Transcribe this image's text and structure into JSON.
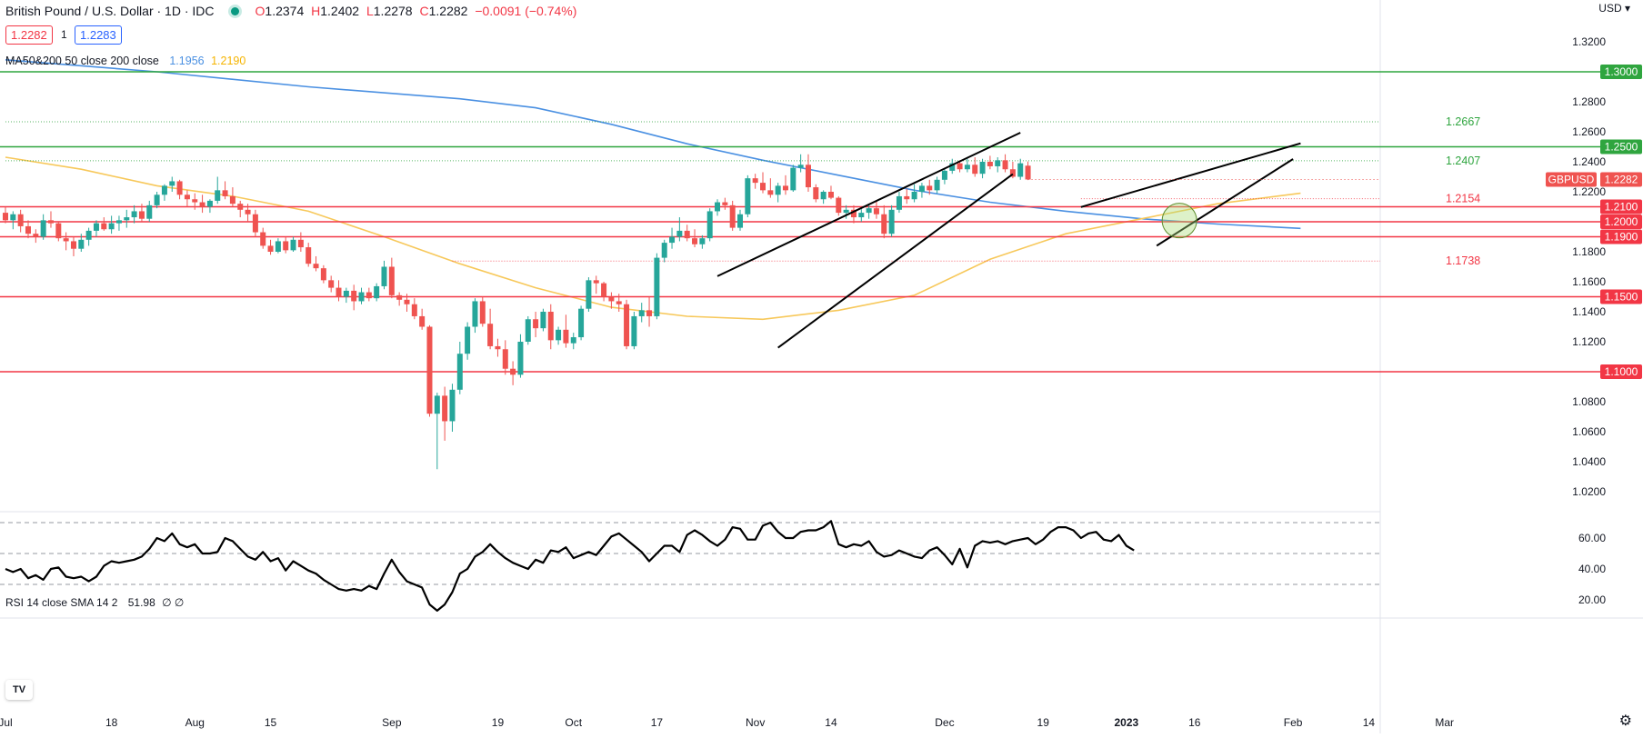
{
  "header": {
    "title": "British Pound / U.S. Dollar · 1D · IDC",
    "ohlc": {
      "o": "1.2374",
      "h": "1.2402",
      "l": "1.2278",
      "c": "1.2282",
      "chg": "−0.0091 (−0.74%)"
    },
    "bid": "1.2282",
    "spread": "1",
    "ask": "1.2283",
    "currency": "USD"
  },
  "ma_legend": {
    "label": "MA50&200 50 close 200 close",
    "ma200": "1.1956",
    "ma50": "1.2190"
  },
  "rsi_legend": {
    "label": "RSI 14 close SMA 14 2",
    "value": "51.98",
    "extra": "∅ ∅"
  },
  "colors": {
    "up": "#26a69a",
    "down": "#ef5350",
    "ma200": "#4a90e2",
    "ma50": "#f7c85a",
    "support": "#f23645",
    "resistance": "#2fa53f"
  },
  "chart_data": {
    "type": "candlestick",
    "symbol": "GBPUSD",
    "price_axis": {
      "ylim": [
        1.01,
        1.335
      ],
      "ticks": [
        "1.3200",
        "1.2800",
        "1.2600",
        "1.2400",
        "1.2200",
        "1.1800",
        "1.1600",
        "1.1400",
        "1.1200",
        "1.0800",
        "1.0600",
        "1.0400",
        "1.0200"
      ]
    },
    "time_axis": {
      "labels": [
        [
          "Jul",
          0
        ],
        [
          "18",
          14
        ],
        [
          "Aug",
          25
        ],
        [
          "15",
          35
        ],
        [
          "Sep",
          51
        ],
        [
          "19",
          65
        ],
        [
          "Oct",
          75
        ],
        [
          "17",
          86
        ],
        [
          "Nov",
          99
        ],
        [
          "14",
          109
        ],
        [
          "Dec",
          124
        ],
        [
          "19",
          137
        ],
        [
          "2023",
          148
        ],
        [
          "16",
          157
        ],
        [
          "Feb",
          170
        ],
        [
          "14",
          180
        ],
        [
          "Mar",
          190
        ]
      ]
    },
    "last_price": {
      "label": "GBPUSD",
      "value": "1.2282"
    },
    "horizontal_levels": [
      {
        "value": 1.3,
        "label": "1.3000",
        "kind": "resistance"
      },
      {
        "value": 1.25,
        "label": "1.2500",
        "kind": "resistance"
      },
      {
        "value": 1.21,
        "label": "1.2100",
        "kind": "support"
      },
      {
        "value": 1.2,
        "label": "1.2000",
        "kind": "support"
      },
      {
        "value": 1.19,
        "label": "1.1900",
        "kind": "support"
      },
      {
        "value": 1.15,
        "label": "1.1500",
        "kind": "support"
      },
      {
        "value": 1.1,
        "label": "1.1000",
        "kind": "support"
      }
    ],
    "fib_levels": [
      {
        "value": 1.2667,
        "label": "1.2667",
        "kind": "resistance",
        "from": 0
      },
      {
        "value": 1.2407,
        "label": "1.2407",
        "kind": "resistance",
        "from": 0
      },
      {
        "value": 1.2154,
        "label": "1.2154",
        "kind": "support",
        "from": 142
      },
      {
        "value": 1.1738,
        "label": "1.1738",
        "kind": "support",
        "from": 59
      }
    ],
    "trendlines": [
      {
        "name": "upper-channel-1",
        "p1": [
          94,
          1.1637
        ],
        "p2": [
          134,
          1.2594
        ]
      },
      {
        "name": "lower-channel-1",
        "p1": [
          102,
          1.116
        ],
        "p2": [
          133,
          1.2318
        ]
      },
      {
        "name": "upper-wedge-2",
        "p1": [
          142,
          1.2098
        ],
        "p2": [
          171,
          1.2523
        ]
      },
      {
        "name": "lower-wedge-2",
        "p1": [
          152,
          1.184
        ],
        "p2": [
          170,
          1.2418
        ]
      }
    ],
    "highlight_circle": {
      "x": 155,
      "y": 1.2008
    },
    "candles": [
      [
        1.206,
        1.21,
        1.199,
        1.201
      ],
      [
        1.201,
        1.207,
        1.195,
        1.205
      ],
      [
        1.205,
        1.208,
        1.193,
        1.197
      ],
      [
        1.197,
        1.201,
        1.189,
        1.192
      ],
      [
        1.192,
        1.195,
        1.186,
        1.19
      ],
      [
        1.19,
        1.205,
        1.188,
        1.201
      ],
      [
        1.201,
        1.207,
        1.196,
        1.199
      ],
      [
        1.199,
        1.2,
        1.187,
        1.189
      ],
      [
        1.189,
        1.193,
        1.181,
        1.187
      ],
      [
        1.187,
        1.19,
        1.177,
        1.182
      ],
      [
        1.182,
        1.192,
        1.18,
        1.188
      ],
      [
        1.188,
        1.196,
        1.184,
        1.194
      ],
      [
        1.194,
        1.201,
        1.19,
        1.199
      ],
      [
        1.199,
        1.203,
        1.194,
        1.195
      ],
      [
        1.195,
        1.204,
        1.192,
        1.199
      ],
      [
        1.199,
        1.204,
        1.194,
        1.201
      ],
      [
        1.201,
        1.208,
        1.196,
        1.203
      ],
      [
        1.203,
        1.211,
        1.199,
        1.207
      ],
      [
        1.207,
        1.212,
        1.2,
        1.202
      ],
      [
        1.202,
        1.214,
        1.2,
        1.211
      ],
      [
        1.211,
        1.22,
        1.209,
        1.218
      ],
      [
        1.218,
        1.225,
        1.214,
        1.224
      ],
      [
        1.224,
        1.23,
        1.22,
        1.227
      ],
      [
        1.227,
        1.228,
        1.215,
        1.218
      ],
      [
        1.218,
        1.221,
        1.21,
        1.215
      ],
      [
        1.215,
        1.219,
        1.208,
        1.213
      ],
      [
        1.213,
        1.218,
        1.206,
        1.21
      ],
      [
        1.21,
        1.215,
        1.206,
        1.214
      ],
      [
        1.214,
        1.23,
        1.212,
        1.221
      ],
      [
        1.221,
        1.227,
        1.215,
        1.217
      ],
      [
        1.217,
        1.223,
        1.21,
        1.212
      ],
      [
        1.212,
        1.214,
        1.203,
        1.208
      ],
      [
        1.208,
        1.212,
        1.2,
        1.205
      ],
      [
        1.205,
        1.208,
        1.19,
        1.193
      ],
      [
        1.193,
        1.196,
        1.182,
        1.184
      ],
      [
        1.184,
        1.188,
        1.178,
        1.18
      ],
      [
        1.18,
        1.189,
        1.179,
        1.187
      ],
      [
        1.187,
        1.19,
        1.179,
        1.181
      ],
      [
        1.181,
        1.19,
        1.18,
        1.188
      ],
      [
        1.188,
        1.193,
        1.18,
        1.183
      ],
      [
        1.183,
        1.186,
        1.17,
        1.172
      ],
      [
        1.172,
        1.177,
        1.167,
        1.169
      ],
      [
        1.169,
        1.171,
        1.159,
        1.161
      ],
      [
        1.161,
        1.164,
        1.153,
        1.156
      ],
      [
        1.156,
        1.161,
        1.147,
        1.15
      ],
      [
        1.15,
        1.156,
        1.146,
        1.154
      ],
      [
        1.154,
        1.158,
        1.141,
        1.147
      ],
      [
        1.147,
        1.156,
        1.145,
        1.153
      ],
      [
        1.153,
        1.156,
        1.147,
        1.149
      ],
      [
        1.149,
        1.159,
        1.147,
        1.157
      ],
      [
        1.157,
        1.174,
        1.155,
        1.17
      ],
      [
        1.17,
        1.176,
        1.149,
        1.151
      ],
      [
        1.151,
        1.153,
        1.144,
        1.148
      ],
      [
        1.148,
        1.152,
        1.14,
        1.145
      ],
      [
        1.145,
        1.149,
        1.135,
        1.137
      ],
      [
        1.137,
        1.142,
        1.128,
        1.13
      ],
      [
        1.13,
        1.131,
        1.07,
        1.072
      ],
      [
        1.072,
        1.086,
        1.035,
        1.084
      ],
      [
        1.084,
        1.09,
        1.054,
        1.067
      ],
      [
        1.067,
        1.092,
        1.06,
        1.088
      ],
      [
        1.088,
        1.12,
        1.085,
        1.112
      ],
      [
        1.112,
        1.133,
        1.108,
        1.13
      ],
      [
        1.13,
        1.149,
        1.126,
        1.147
      ],
      [
        1.147,
        1.15,
        1.13,
        1.132
      ],
      [
        1.132,
        1.142,
        1.115,
        1.117
      ],
      [
        1.117,
        1.122,
        1.11,
        1.115
      ],
      [
        1.115,
        1.121,
        1.098,
        1.102
      ],
      [
        1.102,
        1.107,
        1.091,
        1.098
      ],
      [
        1.098,
        1.125,
        1.096,
        1.12
      ],
      [
        1.12,
        1.137,
        1.118,
        1.135
      ],
      [
        1.135,
        1.14,
        1.123,
        1.129
      ],
      [
        1.129,
        1.142,
        1.127,
        1.14
      ],
      [
        1.14,
        1.145,
        1.115,
        1.121
      ],
      [
        1.121,
        1.13,
        1.118,
        1.128
      ],
      [
        1.128,
        1.138,
        1.116,
        1.119
      ],
      [
        1.119,
        1.126,
        1.115,
        1.123
      ],
      [
        1.123,
        1.144,
        1.121,
        1.142
      ],
      [
        1.142,
        1.163,
        1.14,
        1.161
      ],
      [
        1.161,
        1.164,
        1.152,
        1.159
      ],
      [
        1.159,
        1.16,
        1.147,
        1.15
      ],
      [
        1.15,
        1.153,
        1.142,
        1.147
      ],
      [
        1.147,
        1.152,
        1.14,
        1.145
      ],
      [
        1.145,
        1.148,
        1.115,
        1.117
      ],
      [
        1.117,
        1.14,
        1.115,
        1.137
      ],
      [
        1.137,
        1.146,
        1.133,
        1.141
      ],
      [
        1.141,
        1.15,
        1.13,
        1.137
      ],
      [
        1.137,
        1.179,
        1.135,
        1.176
      ],
      [
        1.176,
        1.188,
        1.173,
        1.186
      ],
      [
        1.186,
        1.196,
        1.182,
        1.19
      ],
      [
        1.19,
        1.203,
        1.187,
        1.194
      ],
      [
        1.194,
        1.198,
        1.187,
        1.189
      ],
      [
        1.189,
        1.195,
        1.183,
        1.185
      ],
      [
        1.185,
        1.191,
        1.182,
        1.189
      ],
      [
        1.189,
        1.209,
        1.187,
        1.207
      ],
      [
        1.207,
        1.215,
        1.204,
        1.213
      ],
      [
        1.213,
        1.216,
        1.208,
        1.211
      ],
      [
        1.211,
        1.214,
        1.194,
        1.196
      ],
      [
        1.196,
        1.208,
        1.194,
        1.205
      ],
      [
        1.205,
        1.231,
        1.203,
        1.229
      ],
      [
        1.229,
        1.232,
        1.222,
        1.226
      ],
      [
        1.226,
        1.233,
        1.219,
        1.221
      ],
      [
        1.221,
        1.229,
        1.216,
        1.218
      ],
      [
        1.218,
        1.226,
        1.213,
        1.224
      ],
      [
        1.224,
        1.231,
        1.218,
        1.221
      ],
      [
        1.221,
        1.238,
        1.22,
        1.236
      ],
      [
        1.236,
        1.245,
        1.233,
        1.238
      ],
      [
        1.238,
        1.245,
        1.22,
        1.223
      ],
      [
        1.223,
        1.225,
        1.213,
        1.215
      ],
      [
        1.215,
        1.221,
        1.212,
        1.22
      ],
      [
        1.22,
        1.224,
        1.215,
        1.216
      ],
      [
        1.216,
        1.217,
        1.204,
        1.206
      ],
      [
        1.206,
        1.211,
        1.202,
        1.208
      ],
      [
        1.208,
        1.211,
        1.199,
        1.203
      ],
      [
        1.203,
        1.209,
        1.2,
        1.206
      ],
      [
        1.206,
        1.212,
        1.202,
        1.209
      ],
      [
        1.209,
        1.214,
        1.202,
        1.205
      ],
      [
        1.205,
        1.211,
        1.189,
        1.192
      ],
      [
        1.192,
        1.211,
        1.19,
        1.208
      ],
      [
        1.208,
        1.22,
        1.206,
        1.217
      ],
      [
        1.217,
        1.222,
        1.212,
        1.215
      ],
      [
        1.215,
        1.225,
        1.213,
        1.22
      ],
      [
        1.22,
        1.226,
        1.216,
        1.224
      ],
      [
        1.224,
        1.228,
        1.218,
        1.221
      ],
      [
        1.221,
        1.23,
        1.219,
        1.228
      ],
      [
        1.228,
        1.236,
        1.225,
        1.234
      ],
      [
        1.234,
        1.242,
        1.232,
        1.239
      ],
      [
        1.239,
        1.241,
        1.233,
        1.235
      ],
      [
        1.235,
        1.242,
        1.233,
        1.238
      ],
      [
        1.238,
        1.243,
        1.23,
        1.232
      ],
      [
        1.232,
        1.242,
        1.229,
        1.24
      ],
      [
        1.24,
        1.244,
        1.235,
        1.237
      ],
      [
        1.237,
        1.243,
        1.233,
        1.241
      ],
      [
        1.241,
        1.245,
        1.233,
        1.235
      ],
      [
        1.235,
        1.24,
        1.229,
        1.23
      ],
      [
        1.23,
        1.242,
        1.228,
        1.239
      ],
      [
        1.2374,
        1.2402,
        1.2278,
        1.2282
      ]
    ],
    "ma200": [
      [
        0,
        1.308
      ],
      [
        20,
        1.3
      ],
      [
        40,
        1.29
      ],
      [
        60,
        1.282
      ],
      [
        70,
        1.276
      ],
      [
        80,
        1.265
      ],
      [
        90,
        1.252
      ],
      [
        100,
        1.241
      ],
      [
        110,
        1.231
      ],
      [
        120,
        1.221
      ],
      [
        130,
        1.213
      ],
      [
        140,
        1.207
      ],
      [
        150,
        1.202
      ],
      [
        160,
        1.1985
      ],
      [
        171,
        1.1956
      ]
    ],
    "ma50": [
      [
        0,
        1.243
      ],
      [
        10,
        1.235
      ],
      [
        20,
        1.224
      ],
      [
        30,
        1.217
      ],
      [
        40,
        1.207
      ],
      [
        50,
        1.19
      ],
      [
        60,
        1.172
      ],
      [
        70,
        1.156
      ],
      [
        80,
        1.143
      ],
      [
        90,
        1.137
      ],
      [
        100,
        1.135
      ],
      [
        110,
        1.141
      ],
      [
        120,
        1.151
      ],
      [
        130,
        1.175
      ],
      [
        140,
        1.192
      ],
      [
        150,
        1.202
      ],
      [
        160,
        1.212
      ],
      [
        171,
        1.219
      ]
    ],
    "rsi": {
      "ticks": [
        "60.00",
        "40.00",
        "20.00"
      ],
      "bands": [
        70,
        50,
        30
      ],
      "values": [
        40,
        38,
        40,
        34,
        36,
        33,
        40,
        41,
        35,
        34,
        35,
        32,
        35,
        42,
        45,
        44,
        45,
        46,
        48,
        53,
        60,
        58,
        63,
        56,
        54,
        56,
        50,
        50,
        51,
        60,
        58,
        53,
        48,
        46,
        51,
        45,
        47,
        39,
        45,
        42,
        39,
        37,
        33,
        30,
        27,
        26,
        27,
        26,
        29,
        27,
        37,
        46,
        38,
        32,
        30,
        28,
        17,
        13,
        17,
        25,
        37,
        40,
        48,
        51,
        56,
        51,
        47,
        44,
        42,
        40,
        46,
        44,
        52,
        51,
        54,
        47,
        49,
        51,
        49,
        55,
        61,
        63,
        59,
        55,
        51,
        45,
        50,
        55,
        55,
        51,
        62,
        65,
        62,
        58,
        55,
        59,
        67,
        66,
        59,
        59,
        68,
        70,
        64,
        60,
        60,
        64,
        65,
        65,
        67,
        71,
        56,
        54,
        56,
        55,
        58,
        51,
        48,
        49,
        52,
        50,
        48,
        47,
        52,
        54,
        49,
        43,
        53,
        41,
        55,
        58,
        57,
        58,
        56,
        58,
        59,
        60,
        56,
        59,
        64,
        67,
        67,
        65,
        60,
        63,
        64,
        59,
        58,
        62,
        55,
        52
      ]
    }
  }
}
